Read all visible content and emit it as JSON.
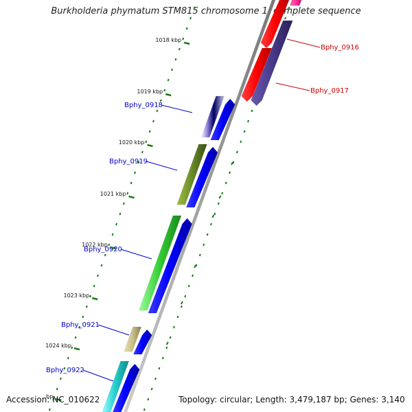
{
  "title": "Burkholderia phymatum STM815 chromosome 1, complete sequence",
  "accession": "Accession: NC_010622",
  "topology": "Topology: circular; Length: 3,479,187 bp; Genes: 3,140",
  "scale_labels": [
    "1018 kbp",
    "1019 kbp",
    "1020 kbp",
    "1021 kbp",
    "1022 kbp",
    "1023 kbp",
    "1024 kbp",
    "bp"
  ],
  "genes": [
    {
      "name": "Bphy_0916",
      "strand": "reverse",
      "color": "#ff0000"
    },
    {
      "name": "Bphy_0917",
      "strand": "reverse",
      "color": "#ff0000"
    },
    {
      "name": "Bphy_0918",
      "strand": "forward",
      "color": "#0000cc"
    },
    {
      "name": "Bphy_0919",
      "strand": "forward",
      "color": "#0000cc"
    },
    {
      "name": "Bphy_0920",
      "strand": "forward",
      "color": "#0000cc"
    },
    {
      "name": "Bphy_0921",
      "strand": "forward",
      "color": "#0000cc"
    },
    {
      "name": "Bphy_0922",
      "strand": "forward",
      "color": "#0000cc"
    }
  ],
  "colors": {
    "backbone": "#888888",
    "tick_dots": "#1a7a1a",
    "forward_cds": "#0000ff",
    "reverse_cds": "#ff0000",
    "reverse_cog": "#4a3a8a",
    "cog_0916": "#ff3399",
    "cog_0918": "#7a6ad0",
    "cog_0919": "#6a8a2a",
    "cog_0920": "#33cc33",
    "cog_0921": "#c8c088",
    "cog_0922": "#22cccc"
  }
}
